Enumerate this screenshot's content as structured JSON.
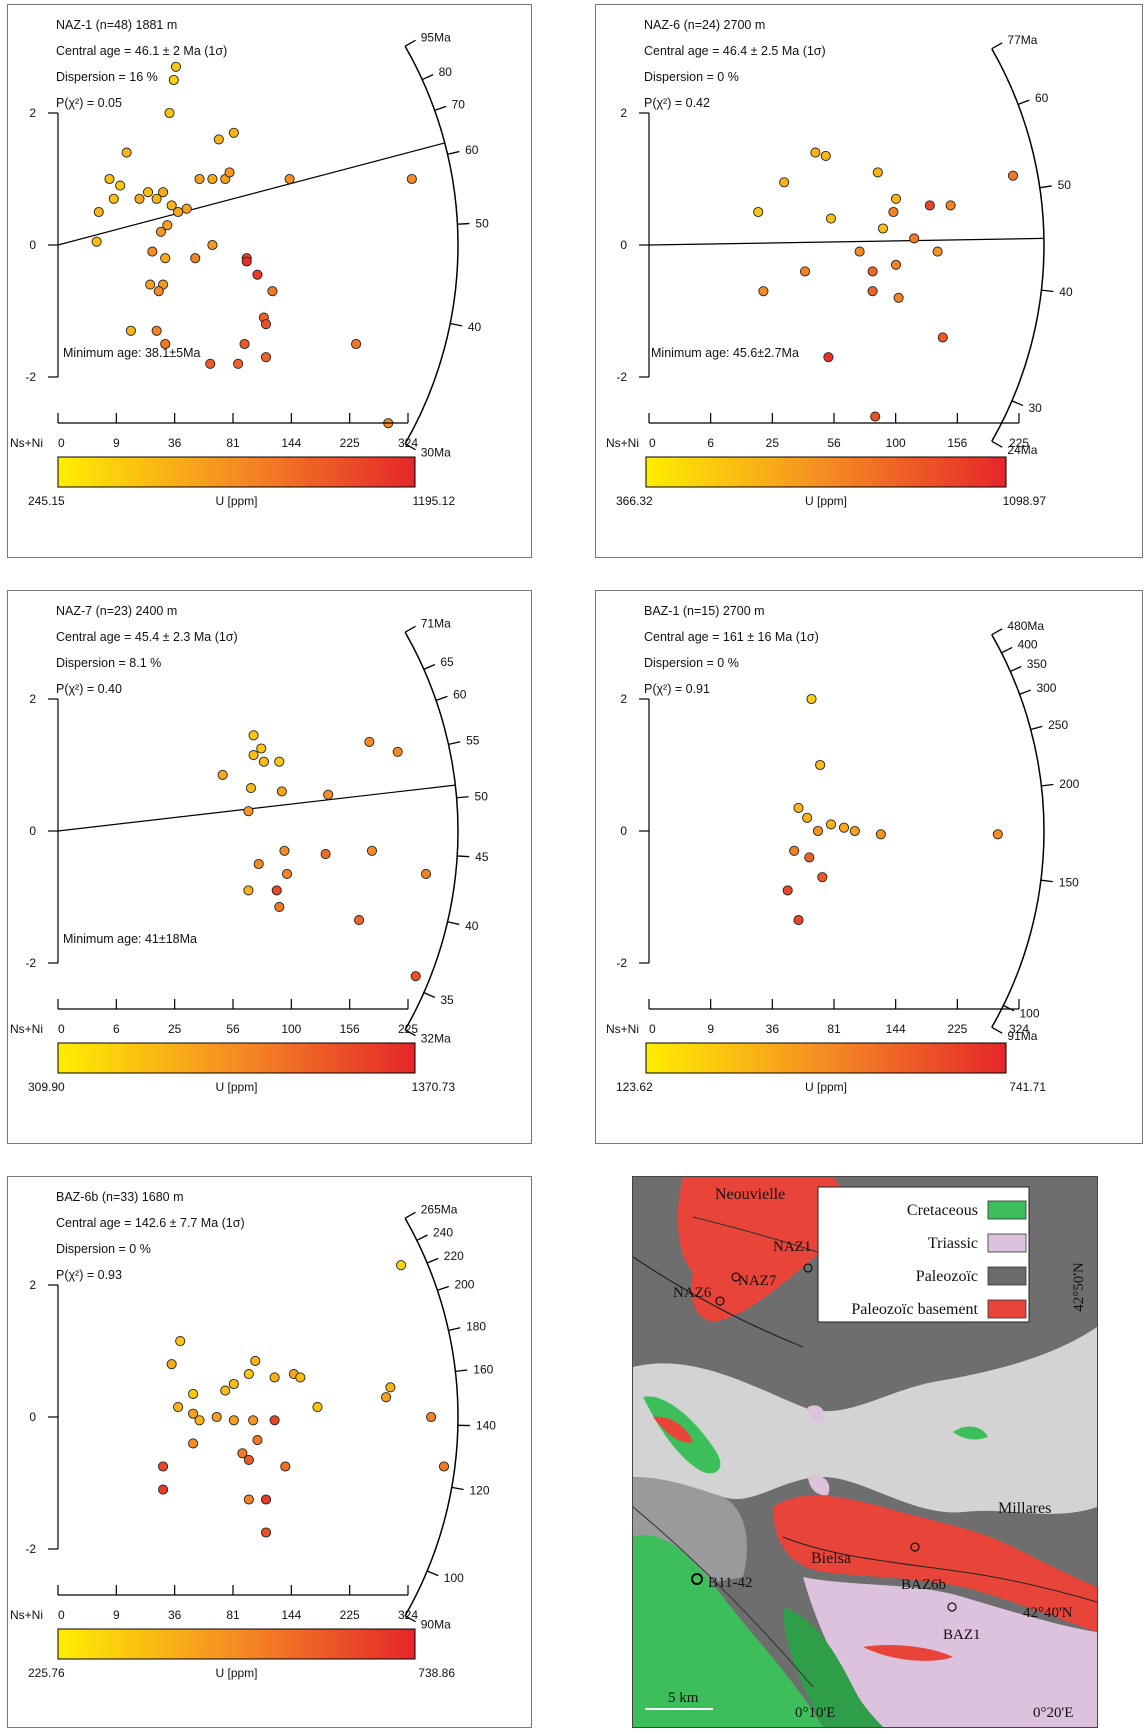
{
  "colors": {
    "low": "#ffee00",
    "high": "#e5262a",
    "point_stroke": "#222222"
  },
  "chart_data": [
    {
      "type": "scatter",
      "subtype": "radial-plot",
      "title": "NAZ-1 (n=48) 1881 m",
      "stats": [
        "Central age = 46.1 ± 2 Ma (1σ)",
        "Dispersion = 16 %",
        "P(χ²) = 0.05"
      ],
      "min_age": "Minimum age: 38.1±5Ma",
      "y_ticks": [
        "2",
        "0",
        "-2"
      ],
      "x_label": "Ns+Ni",
      "x_ticks": [
        "0",
        "9",
        "36",
        "81",
        "144",
        "225",
        "324"
      ],
      "x_max": 18,
      "colorbar": {
        "min": "245.15",
        "label": "U [ppm]",
        "max": "1195.12"
      },
      "age_scale": [
        {
          "label": "95Ma",
          "age": 95,
          "t": 0.0
        },
        {
          "label": "80",
          "age": 80,
          "t": 0.09
        },
        {
          "label": "70",
          "age": 70,
          "t": 0.17
        },
        {
          "label": "60",
          "age": 60,
          "t": 0.28
        },
        {
          "label": "50",
          "age": 50,
          "t": 0.45
        },
        {
          "label": "40",
          "age": 40,
          "t": 0.69
        },
        {
          "label": "30Ma",
          "age": 30,
          "t": 1.0
        }
      ],
      "central_line_end": -1.6,
      "points": [
        {
          "x": 5.5,
          "y": 2.7,
          "c": 0.2
        },
        {
          "x": 5.4,
          "y": 2.5,
          "c": 0.15
        },
        {
          "x": 5.2,
          "y": 2.0,
          "c": 0.2
        },
        {
          "x": 7.5,
          "y": 1.6,
          "c": 0.3
        },
        {
          "x": 8.2,
          "y": 1.7,
          "c": 0.3
        },
        {
          "x": 3.2,
          "y": 1.4,
          "c": 0.3
        },
        {
          "x": 2.4,
          "y": 1.0,
          "c": 0.25
        },
        {
          "x": 2.6,
          "y": 0.7,
          "c": 0.25
        },
        {
          "x": 2.9,
          "y": 0.9,
          "c": 0.2
        },
        {
          "x": 1.9,
          "y": 0.5,
          "c": 0.3
        },
        {
          "x": 1.8,
          "y": 0.05,
          "c": 0.25
        },
        {
          "x": 4.2,
          "y": 0.8,
          "c": 0.25
        },
        {
          "x": 4.6,
          "y": 0.7,
          "c": 0.3
        },
        {
          "x": 4.9,
          "y": 0.8,
          "c": 0.35
        },
        {
          "x": 5.3,
          "y": 0.6,
          "c": 0.3
        },
        {
          "x": 5.6,
          "y": 0.5,
          "c": 0.35
        },
        {
          "x": 5.1,
          "y": 0.3,
          "c": 0.4
        },
        {
          "x": 4.8,
          "y": 0.2,
          "c": 0.45
        },
        {
          "x": 5.0,
          "y": -0.2,
          "c": 0.35
        },
        {
          "x": 4.4,
          "y": -0.1,
          "c": 0.5
        },
        {
          "x": 6.0,
          "y": 0.55,
          "c": 0.4
        },
        {
          "x": 6.6,
          "y": 1.0,
          "c": 0.4
        },
        {
          "x": 7.2,
          "y": 1.0,
          "c": 0.35
        },
        {
          "x": 7.8,
          "y": 1.0,
          "c": 0.4
        },
        {
          "x": 8.0,
          "y": 1.1,
          "c": 0.45
        },
        {
          "x": 10.8,
          "y": 1.0,
          "c": 0.5
        },
        {
          "x": 6.4,
          "y": -0.2,
          "c": 0.55
        },
        {
          "x": 7.2,
          "y": 0.0,
          "c": 0.45
        },
        {
          "x": 4.3,
          "y": -0.6,
          "c": 0.4
        },
        {
          "x": 4.9,
          "y": -0.6,
          "c": 0.45
        },
        {
          "x": 3.4,
          "y": -1.3,
          "c": 0.3
        },
        {
          "x": 4.6,
          "y": -1.3,
          "c": 0.55
        },
        {
          "x": 5.0,
          "y": -1.5,
          "c": 0.6
        },
        {
          "x": 7.1,
          "y": -1.8,
          "c": 0.75
        },
        {
          "x": 8.8,
          "y": -0.2,
          "c": 0.85
        },
        {
          "x": 9.3,
          "y": -0.45,
          "c": 0.9
        },
        {
          "x": 10.0,
          "y": -0.7,
          "c": 0.6
        },
        {
          "x": 9.6,
          "y": -1.1,
          "c": 0.7
        },
        {
          "x": 8.7,
          "y": -1.5,
          "c": 0.75
        },
        {
          "x": 8.4,
          "y": -1.8,
          "c": 0.7
        },
        {
          "x": 9.7,
          "y": -1.2,
          "c": 0.8
        },
        {
          "x": 9.7,
          "y": -1.7,
          "c": 0.7
        },
        {
          "x": 8.8,
          "y": -0.25,
          "c": 0.95
        },
        {
          "x": 13.9,
          "y": -1.5,
          "c": 0.6
        },
        {
          "x": 16.5,
          "y": 1.0,
          "c": 0.5
        },
        {
          "x": 15.4,
          "y": -2.7,
          "c": 0.5
        },
        {
          "x": 3.8,
          "y": 0.7,
          "c": 0.35
        },
        {
          "x": 4.7,
          "y": -0.7,
          "c": 0.5
        }
      ]
    },
    {
      "type": "scatter",
      "subtype": "radial-plot",
      "title": "NAZ-6 (n=24) 2700   m",
      "stats": [
        "Central age = 46.4 ± 2.5 Ma (1σ)",
        "Dispersion = 0 %",
        "P(χ²) = 0.42"
      ],
      "min_age": "Minimum age: 45.6±2.7Ma",
      "y_ticks": [
        "2",
        "0",
        "-2"
      ],
      "x_label": "Ns+Ni",
      "x_ticks": [
        "0",
        "6",
        "25",
        "56",
        "100",
        "156",
        "225"
      ],
      "x_max": 15,
      "colorbar": {
        "min": "366.32",
        "label": "U [ppm]",
        "max": "1098.97"
      },
      "age_scale": [
        {
          "label": "77Ma",
          "age": 77,
          "t": 0.0
        },
        {
          "label": "60",
          "age": 60,
          "t": 0.15
        },
        {
          "label": "50",
          "age": 50,
          "t": 0.36
        },
        {
          "label": "40",
          "age": 40,
          "t": 0.61
        },
        {
          "label": "30",
          "age": 30,
          "t": 0.89
        },
        {
          "label": "24Ma",
          "age": 24,
          "t": 1.0
        }
      ],
      "central_line_end": -0.1,
      "points": [
        {
          "x": 6.4,
          "y": 1.4,
          "c": 0.3
        },
        {
          "x": 6.8,
          "y": 1.35,
          "c": 0.3
        },
        {
          "x": 8.8,
          "y": 1.1,
          "c": 0.3
        },
        {
          "x": 5.2,
          "y": 0.95,
          "c": 0.3
        },
        {
          "x": 4.2,
          "y": 0.5,
          "c": 0.2
        },
        {
          "x": 7.0,
          "y": 0.4,
          "c": 0.25
        },
        {
          "x": 9.5,
          "y": 0.7,
          "c": 0.3
        },
        {
          "x": 9.4,
          "y": 0.5,
          "c": 0.55
        },
        {
          "x": 10.8,
          "y": 0.6,
          "c": 0.85
        },
        {
          "x": 11.6,
          "y": 0.6,
          "c": 0.55
        },
        {
          "x": 9.0,
          "y": 0.25,
          "c": 0.25
        },
        {
          "x": 10.2,
          "y": 0.1,
          "c": 0.6
        },
        {
          "x": 8.1,
          "y": -0.1,
          "c": 0.5
        },
        {
          "x": 6.0,
          "y": -0.4,
          "c": 0.55
        },
        {
          "x": 8.6,
          "y": -0.4,
          "c": 0.7
        },
        {
          "x": 9.5,
          "y": -0.3,
          "c": 0.55
        },
        {
          "x": 11.1,
          "y": -0.1,
          "c": 0.45
        },
        {
          "x": 4.4,
          "y": -0.7,
          "c": 0.5
        },
        {
          "x": 8.6,
          "y": -0.7,
          "c": 0.7
        },
        {
          "x": 9.6,
          "y": -0.8,
          "c": 0.55
        },
        {
          "x": 11.3,
          "y": -1.4,
          "c": 0.75
        },
        {
          "x": 6.9,
          "y": -1.7,
          "c": 0.95
        },
        {
          "x": 8.7,
          "y": -2.6,
          "c": 0.8
        },
        {
          "x": 14.0,
          "y": 1.05,
          "c": 0.6
        }
      ]
    },
    {
      "type": "scatter",
      "subtype": "radial-plot",
      "title": "NAZ-7 (n=23) 2400 m",
      "stats": [
        "Central age = 45.4 ± 2.3 Ma (1σ)",
        "Dispersion = 8.1 %",
        "P(χ²) = 0.40"
      ],
      "min_age": "Minimum age: 41±18Ma",
      "y_ticks": [
        "2",
        "0",
        "-2"
      ],
      "x_label": "Ns+Ni",
      "x_ticks": [
        "0",
        "6",
        "25",
        "56",
        "100",
        "156",
        "225"
      ],
      "x_max": 15,
      "colorbar": {
        "min": "309.90",
        "label": "U [ppm]",
        "max": "1370.73"
      },
      "age_scale": [
        {
          "label": "71Ma",
          "age": 71,
          "t": 0.0
        },
        {
          "label": "65",
          "age": 65,
          "t": 0.1
        },
        {
          "label": "60",
          "age": 60,
          "t": 0.18
        },
        {
          "label": "55",
          "age": 55,
          "t": 0.29
        },
        {
          "label": "50",
          "age": 50,
          "t": 0.42
        },
        {
          "label": "45",
          "age": 45,
          "t": 0.56
        },
        {
          "label": "40",
          "age": 40,
          "t": 0.72
        },
        {
          "label": "35",
          "age": 35,
          "t": 0.9
        },
        {
          "label": "32Ma",
          "age": 32,
          "t": 1.0
        }
      ],
      "central_line_end": -0.7,
      "points": [
        {
          "x": 7.6,
          "y": 1.45,
          "c": 0.2
        },
        {
          "x": 7.9,
          "y": 1.25,
          "c": 0.2
        },
        {
          "x": 7.6,
          "y": 1.15,
          "c": 0.25
        },
        {
          "x": 8.0,
          "y": 1.05,
          "c": 0.25
        },
        {
          "x": 8.6,
          "y": 1.05,
          "c": 0.2
        },
        {
          "x": 6.4,
          "y": 0.85,
          "c": 0.35
        },
        {
          "x": 7.5,
          "y": 0.65,
          "c": 0.25
        },
        {
          "x": 8.7,
          "y": 0.6,
          "c": 0.4
        },
        {
          "x": 10.5,
          "y": 0.55,
          "c": 0.5
        },
        {
          "x": 7.4,
          "y": 0.3,
          "c": 0.45
        },
        {
          "x": 12.1,
          "y": 1.35,
          "c": 0.5
        },
        {
          "x": 13.2,
          "y": 1.2,
          "c": 0.5
        },
        {
          "x": 8.8,
          "y": -0.3,
          "c": 0.5
        },
        {
          "x": 10.4,
          "y": -0.35,
          "c": 0.65
        },
        {
          "x": 12.2,
          "y": -0.3,
          "c": 0.5
        },
        {
          "x": 7.8,
          "y": -0.5,
          "c": 0.5
        },
        {
          "x": 8.9,
          "y": -0.65,
          "c": 0.55
        },
        {
          "x": 7.4,
          "y": -0.9,
          "c": 0.3
        },
        {
          "x": 8.5,
          "y": -0.9,
          "c": 0.85
        },
        {
          "x": 8.6,
          "y": -1.15,
          "c": 0.6
        },
        {
          "x": 11.7,
          "y": -1.35,
          "c": 0.7
        },
        {
          "x": 13.9,
          "y": -2.2,
          "c": 0.8
        },
        {
          "x": 14.3,
          "y": -0.65,
          "c": 0.55
        }
      ]
    },
    {
      "type": "scatter",
      "subtype": "radial-plot",
      "title": "BAZ-1 (n=15) 2700 m",
      "stats": [
        "Central age = 161 ± 16 Ma (1σ)",
        "Dispersion = 0 %",
        "P(χ²) = 0.91"
      ],
      "min_age": "",
      "y_ticks": [
        "2",
        "0",
        "-2"
      ],
      "x_label": "Ns+Ni",
      "x_ticks": [
        "0",
        "9",
        "36",
        "81",
        "144",
        "225",
        "324"
      ],
      "x_max": 18,
      "colorbar": {
        "min": "123.62",
        "label": "U [ppm]",
        "max": "741.71"
      },
      "age_scale": [
        {
          "label": "480Ma",
          "age": 480,
          "t": 0.0
        },
        {
          "label": "400",
          "age": 400,
          "t": 0.05
        },
        {
          "label": "350",
          "age": 350,
          "t": 0.1
        },
        {
          "label": "300",
          "age": 300,
          "t": 0.16
        },
        {
          "label": "250",
          "age": 250,
          "t": 0.25
        },
        {
          "label": "200",
          "age": 200,
          "t": 0.39
        },
        {
          "label": "150",
          "age": 150,
          "t": 0.62
        },
        {
          "label": "100",
          "age": 100,
          "t": 0.94
        },
        {
          "label": "91Ma",
          "age": 91,
          "t": 1.0
        }
      ],
      "central_line_end": null,
      "points": [
        {
          "x": 7.5,
          "y": 2.0,
          "c": 0.15
        },
        {
          "x": 7.9,
          "y": 1.0,
          "c": 0.25
        },
        {
          "x": 6.9,
          "y": 0.35,
          "c": 0.3
        },
        {
          "x": 7.3,
          "y": 0.2,
          "c": 0.3
        },
        {
          "x": 8.4,
          "y": 0.1,
          "c": 0.3
        },
        {
          "x": 9.0,
          "y": 0.05,
          "c": 0.35
        },
        {
          "x": 9.5,
          "y": 0.0,
          "c": 0.4
        },
        {
          "x": 10.7,
          "y": -0.05,
          "c": 0.45
        },
        {
          "x": 7.8,
          "y": 0.0,
          "c": 0.45
        },
        {
          "x": 6.7,
          "y": -0.3,
          "c": 0.55
        },
        {
          "x": 7.4,
          "y": -0.4,
          "c": 0.7
        },
        {
          "x": 8.0,
          "y": -0.7,
          "c": 0.75
        },
        {
          "x": 6.4,
          "y": -0.9,
          "c": 0.85
        },
        {
          "x": 6.9,
          "y": -1.35,
          "c": 0.85
        },
        {
          "x": 16.1,
          "y": -0.05,
          "c": 0.5
        }
      ]
    },
    {
      "type": "scatter",
      "subtype": "radial-plot",
      "title": "BAZ-6b (n=33) 1680 m",
      "stats": [
        "Central age = 142.6 ± 7.7 Ma (1σ)",
        "Dispersion = 0 %",
        "P(χ²) = 0.93"
      ],
      "min_age": "",
      "y_ticks": [
        "2",
        "0",
        "-2"
      ],
      "x_label": "Ns+Ni",
      "x_ticks": [
        "0",
        "9",
        "36",
        "81",
        "144",
        "225",
        "324"
      ],
      "x_max": 18,
      "colorbar": {
        "min": "225.76",
        "label": "U [ppm]",
        "max": "738.86"
      },
      "age_scale": [
        {
          "label": "265Ma",
          "age": 265,
          "t": 0.0
        },
        {
          "label": "240",
          "age": 240,
          "t": 0.06
        },
        {
          "label": "220",
          "age": 220,
          "t": 0.12
        },
        {
          "label": "200",
          "age": 200,
          "t": 0.19
        },
        {
          "label": "180",
          "age": 180,
          "t": 0.29
        },
        {
          "label": "160",
          "age": 160,
          "t": 0.39
        },
        {
          "label": "140",
          "age": 140,
          "t": 0.52
        },
        {
          "label": "120",
          "age": 120,
          "t": 0.67
        },
        {
          "label": "100",
          "age": 100,
          "t": 0.88
        },
        {
          "label": "90Ma",
          "age": 90,
          "t": 1.0
        }
      ],
      "central_line_end": null,
      "points": [
        {
          "x": 16.0,
          "y": 2.3,
          "c": 0.15
        },
        {
          "x": 9.2,
          "y": 0.85,
          "c": 0.3
        },
        {
          "x": 8.9,
          "y": 0.65,
          "c": 0.2
        },
        {
          "x": 11.0,
          "y": 0.65,
          "c": 0.35
        },
        {
          "x": 11.3,
          "y": 0.6,
          "c": 0.25
        },
        {
          "x": 10.1,
          "y": 0.6,
          "c": 0.3
        },
        {
          "x": 8.2,
          "y": 0.5,
          "c": 0.25
        },
        {
          "x": 7.8,
          "y": 0.4,
          "c": 0.25
        },
        {
          "x": 6.3,
          "y": 0.35,
          "c": 0.2
        },
        {
          "x": 5.7,
          "y": 1.15,
          "c": 0.2
        },
        {
          "x": 5.3,
          "y": 0.8,
          "c": 0.35
        },
        {
          "x": 15.5,
          "y": 0.45,
          "c": 0.3
        },
        {
          "x": 15.3,
          "y": 0.3,
          "c": 0.4
        },
        {
          "x": 12.1,
          "y": 0.15,
          "c": 0.2
        },
        {
          "x": 5.6,
          "y": 0.15,
          "c": 0.3
        },
        {
          "x": 6.3,
          "y": 0.05,
          "c": 0.4
        },
        {
          "x": 7.4,
          "y": 0.0,
          "c": 0.4
        },
        {
          "x": 6.6,
          "y": -0.05,
          "c": 0.3
        },
        {
          "x": 8.2,
          "y": -0.05,
          "c": 0.4
        },
        {
          "x": 9.1,
          "y": -0.05,
          "c": 0.45
        },
        {
          "x": 10.1,
          "y": -0.05,
          "c": 0.85
        },
        {
          "x": 17.4,
          "y": 0.0,
          "c": 0.55
        },
        {
          "x": 6.3,
          "y": -0.4,
          "c": 0.5
        },
        {
          "x": 9.3,
          "y": -0.35,
          "c": 0.6
        },
        {
          "x": 8.6,
          "y": -0.55,
          "c": 0.6
        },
        {
          "x": 8.9,
          "y": -0.65,
          "c": 0.75
        },
        {
          "x": 10.6,
          "y": -0.75,
          "c": 0.65
        },
        {
          "x": 4.9,
          "y": -0.75,
          "c": 0.85
        },
        {
          "x": 18.0,
          "y": -0.75,
          "c": 0.6
        },
        {
          "x": 4.9,
          "y": -1.1,
          "c": 0.9
        },
        {
          "x": 8.9,
          "y": -1.25,
          "c": 0.55
        },
        {
          "x": 9.7,
          "y": -1.25,
          "c": 0.9
        },
        {
          "x": 9.7,
          "y": -1.75,
          "c": 0.8
        }
      ]
    }
  ],
  "map": {
    "legend": [
      {
        "label": "Cretaceous",
        "color": "#3cbf5a"
      },
      {
        "label": "Triassic",
        "color": "#dcc2dc"
      },
      {
        "label": "Paleozoïc",
        "color": "#6a6a6a"
      },
      {
        "label": "Paleozoïc  basement",
        "color": "#e8443a"
      }
    ],
    "labels": {
      "neouvielle": "Neouvielle",
      "naz1": "NAZ1",
      "naz6": "NAZ6",
      "naz7": "NAZ7",
      "millares": "Millares",
      "bielsa": "Bielsa",
      "b1142": "B11-42",
      "baz6b": "BAZ6b",
      "baz1": "BAZ1",
      "lat_top": "42°50'N",
      "lat_mid": "42°40'N",
      "lon_1": "0°10'E",
      "lon_2": "0°20'E",
      "scale": "5 km"
    }
  }
}
